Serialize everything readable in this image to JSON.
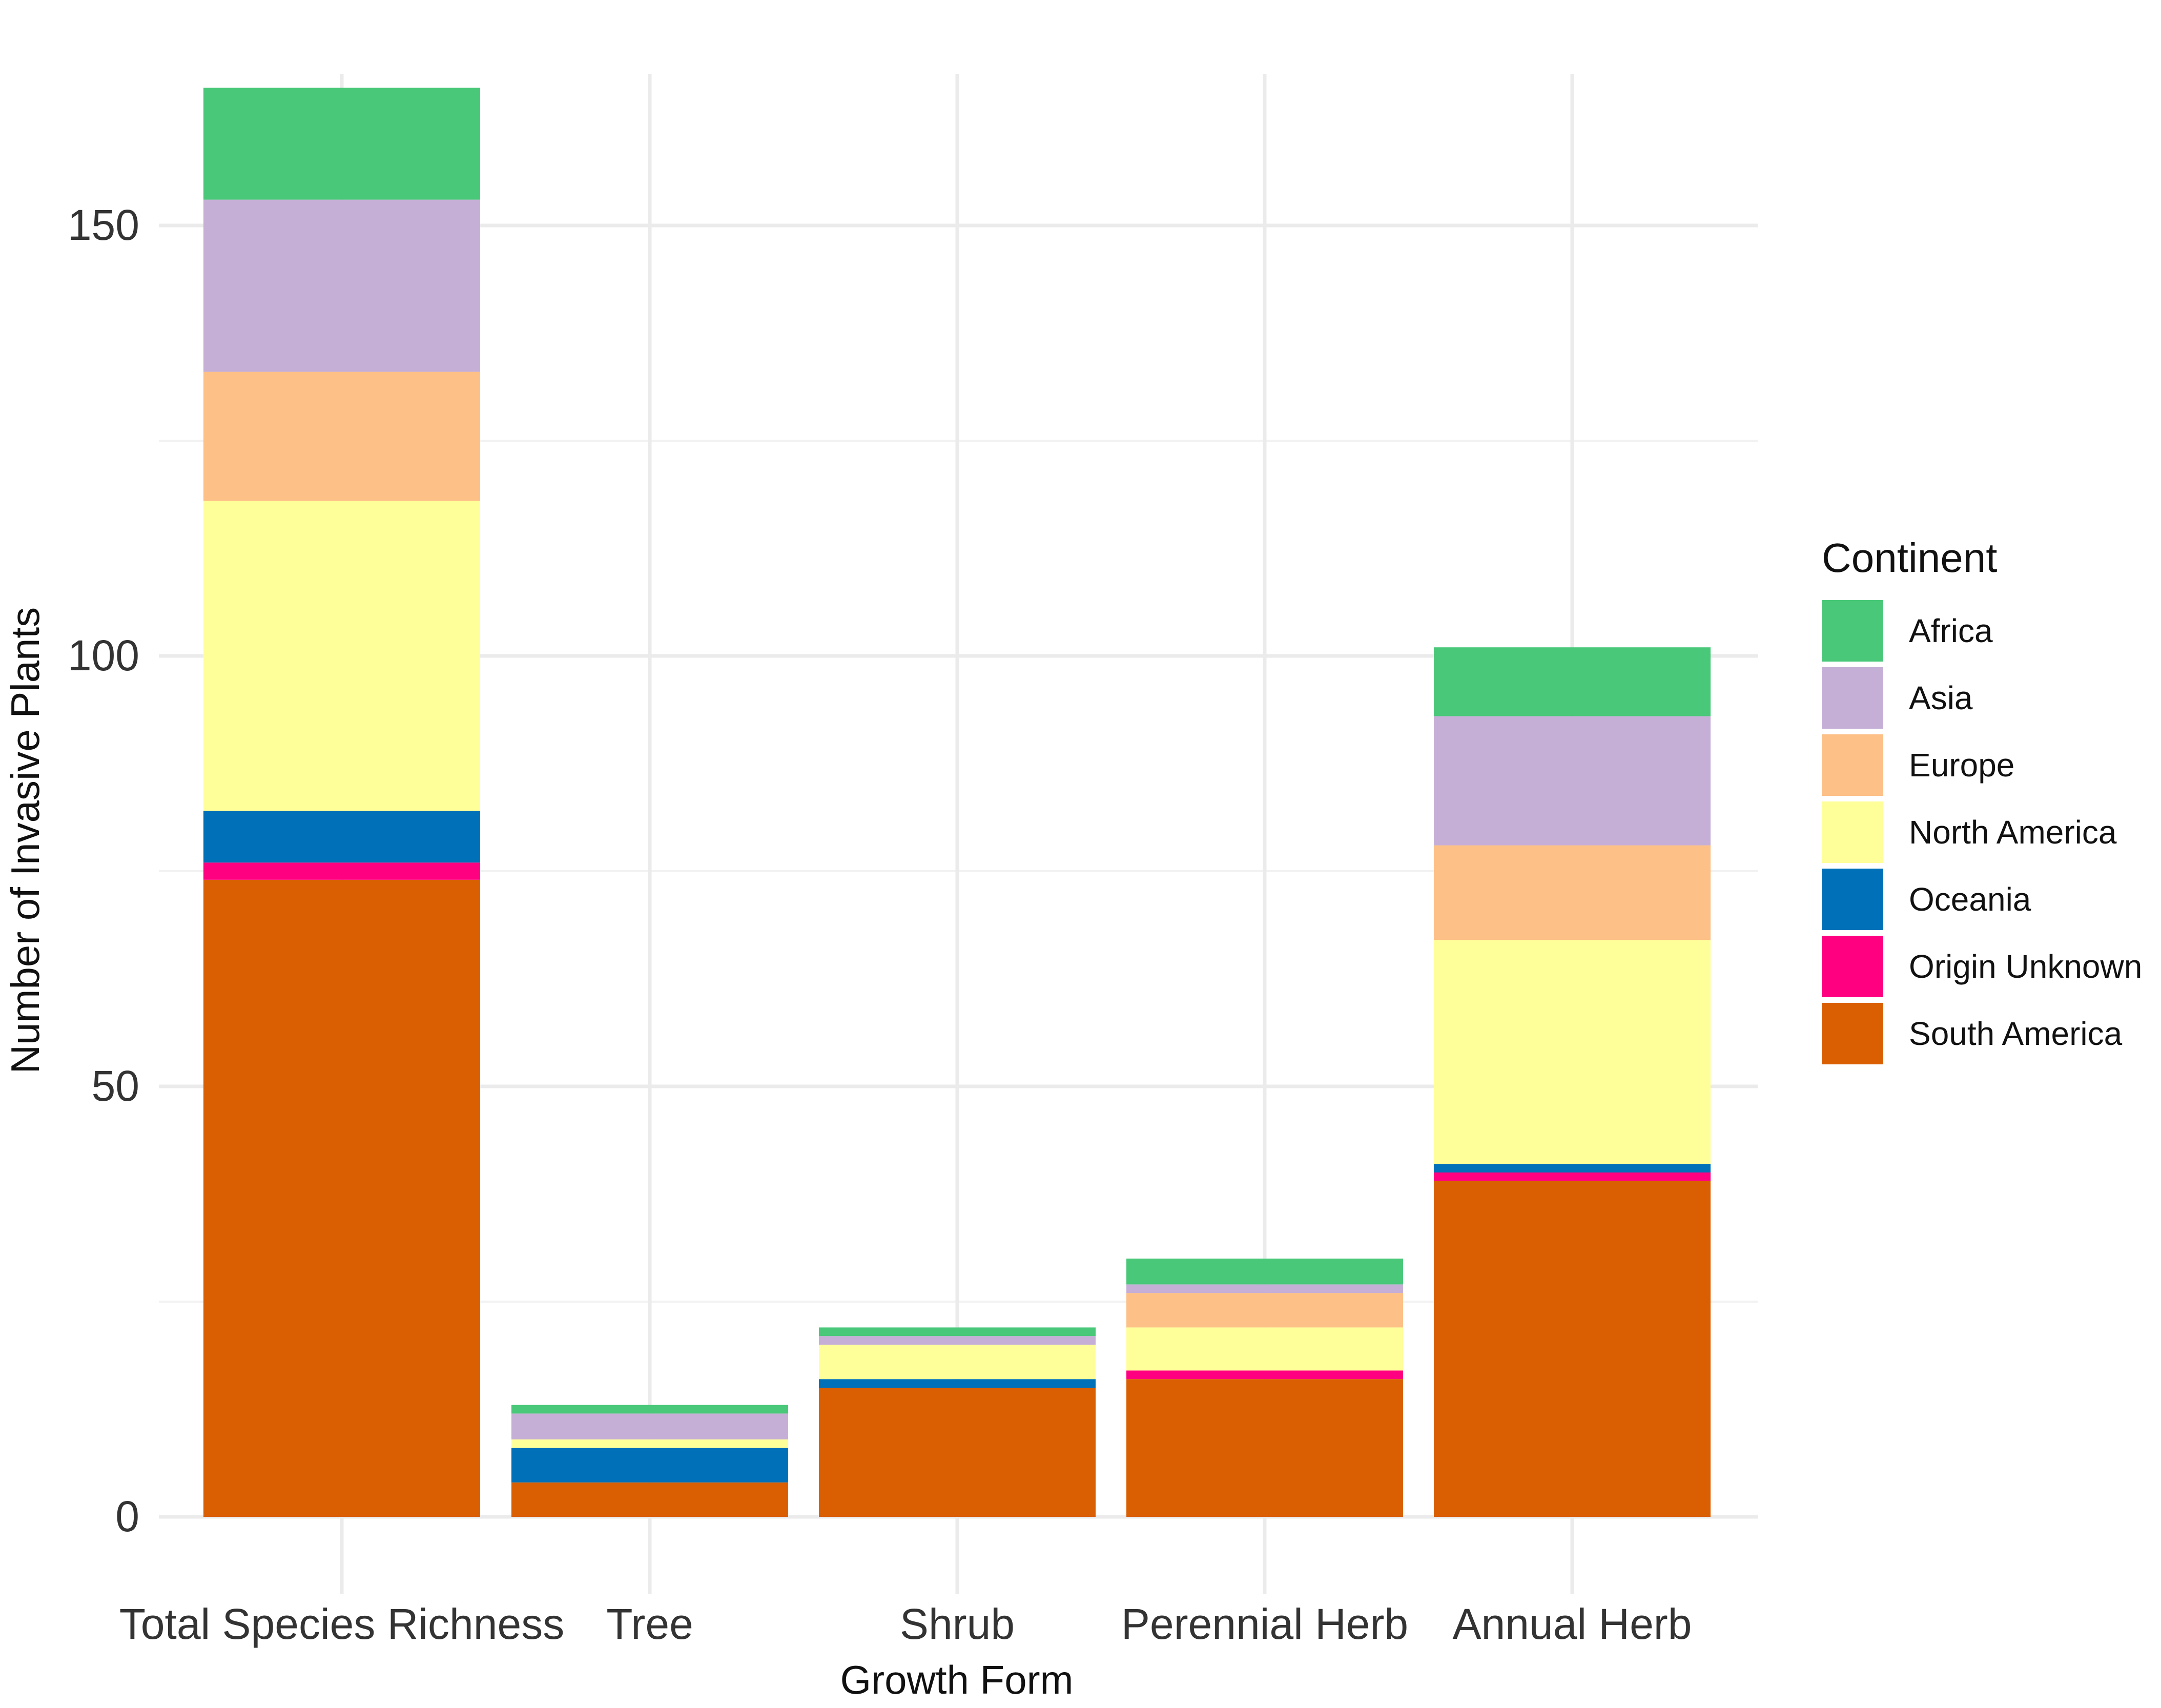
{
  "chart_data": {
    "type": "bar",
    "stacked": true,
    "title": "",
    "xlabel": "Growth Form",
    "ylabel": "Number of Invasive Plants",
    "ylim": [
      0,
      167
    ],
    "yticks": [
      0,
      50,
      100,
      150
    ],
    "grid": true,
    "legend_title": "Continent",
    "legend_position": "right",
    "categories": [
      "Total Species Richness",
      "Tree",
      "Shrub",
      "Perennial Herb",
      "Annual Herb"
    ],
    "series": [
      {
        "name": "South America",
        "color": "#D95F02",
        "values": [
          74,
          4,
          15,
          16,
          39
        ]
      },
      {
        "name": "Origin Unknown",
        "color": "#FF0080",
        "values": [
          2,
          0,
          0,
          1,
          1
        ]
      },
      {
        "name": "Oceania",
        "color": "#0070B8",
        "values": [
          6,
          4,
          1,
          0,
          1
        ]
      },
      {
        "name": "North America",
        "color": "#FFFF99",
        "values": [
          36,
          1,
          4,
          5,
          26
        ]
      },
      {
        "name": "Europe",
        "color": "#FDC086",
        "values": [
          15,
          0,
          0,
          4,
          11
        ]
      },
      {
        "name": "Asia",
        "color": "#C5AFD6",
        "values": [
          20,
          3,
          1,
          1,
          15
        ]
      },
      {
        "name": "Africa",
        "color": "#48C878",
        "values": [
          13,
          1,
          1,
          3,
          8
        ]
      }
    ],
    "legend_order": [
      "Africa",
      "Asia",
      "Europe",
      "North America",
      "Oceania",
      "Origin Unknown",
      "South America"
    ]
  }
}
